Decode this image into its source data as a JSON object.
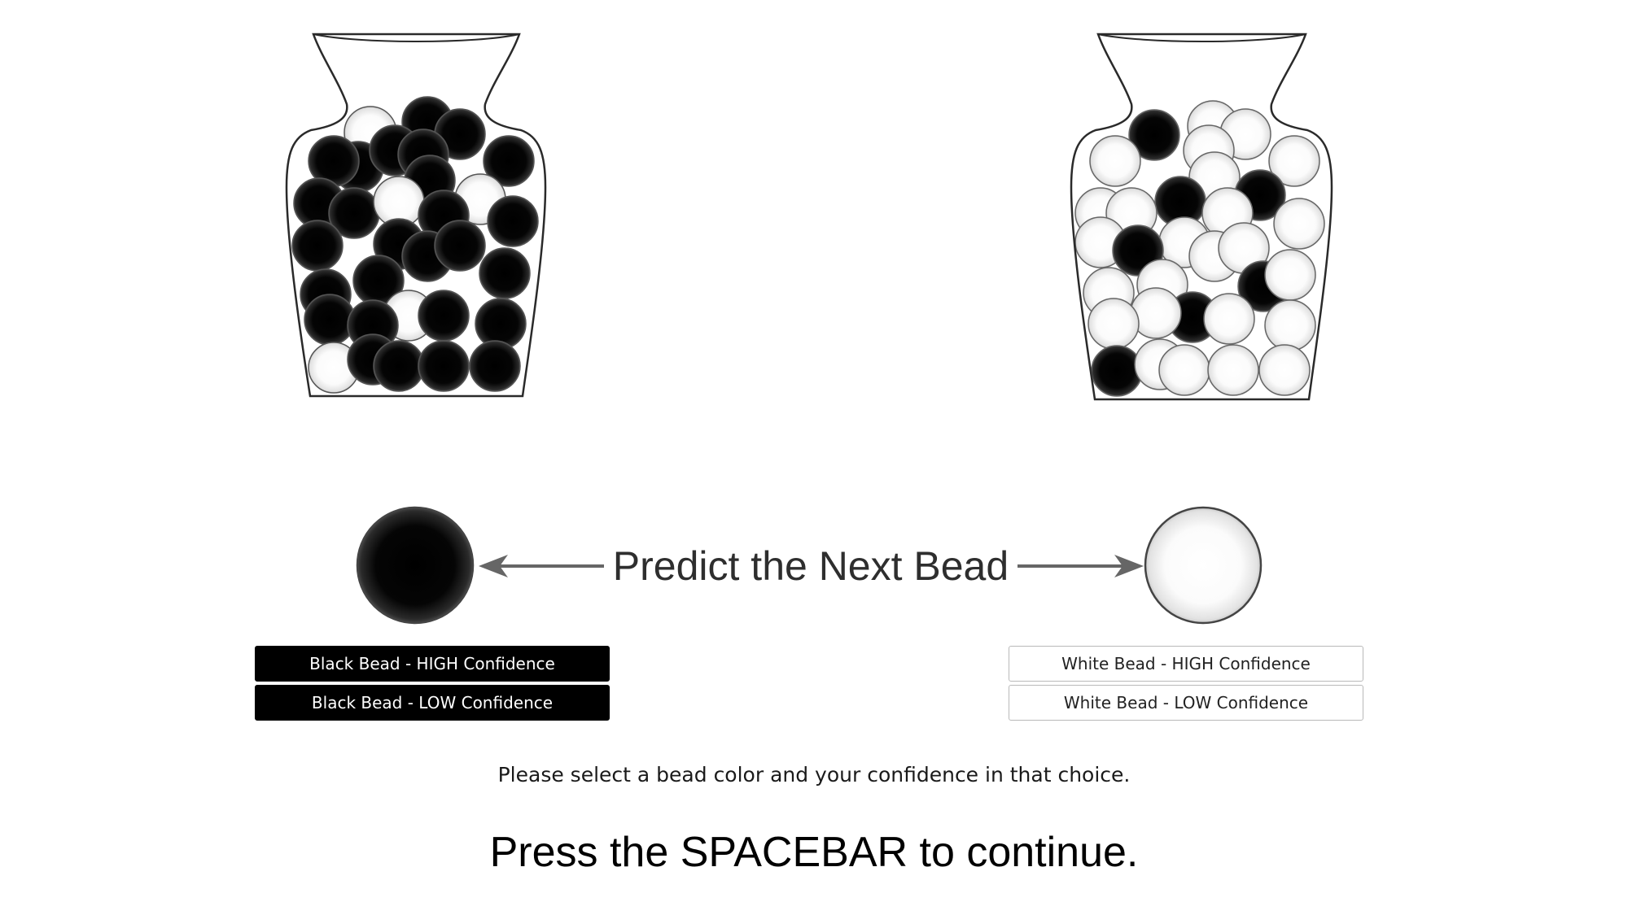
{
  "prompt": {
    "title": "Predict the Next Bead",
    "black_bead_label": "black-bead",
    "white_bead_label": "white-bead"
  },
  "jars": {
    "left": {
      "dominant_color": "black"
    },
    "right": {
      "dominant_color": "white"
    }
  },
  "buttons": {
    "black_high": "Black Bead - HIGH Confidence",
    "black_low": "Black Bead - LOW Confidence",
    "white_high": "White Bead - HIGH Confidence",
    "white_low": "White Bead - LOW Confidence"
  },
  "instruction": "Please select a bead color and your confidence in that choice.",
  "continue_text": "Press the SPACEBAR to continue.",
  "colors": {
    "black_button": "#000000",
    "white_button": "#ffffff",
    "button_border": "#b9b9b9"
  }
}
